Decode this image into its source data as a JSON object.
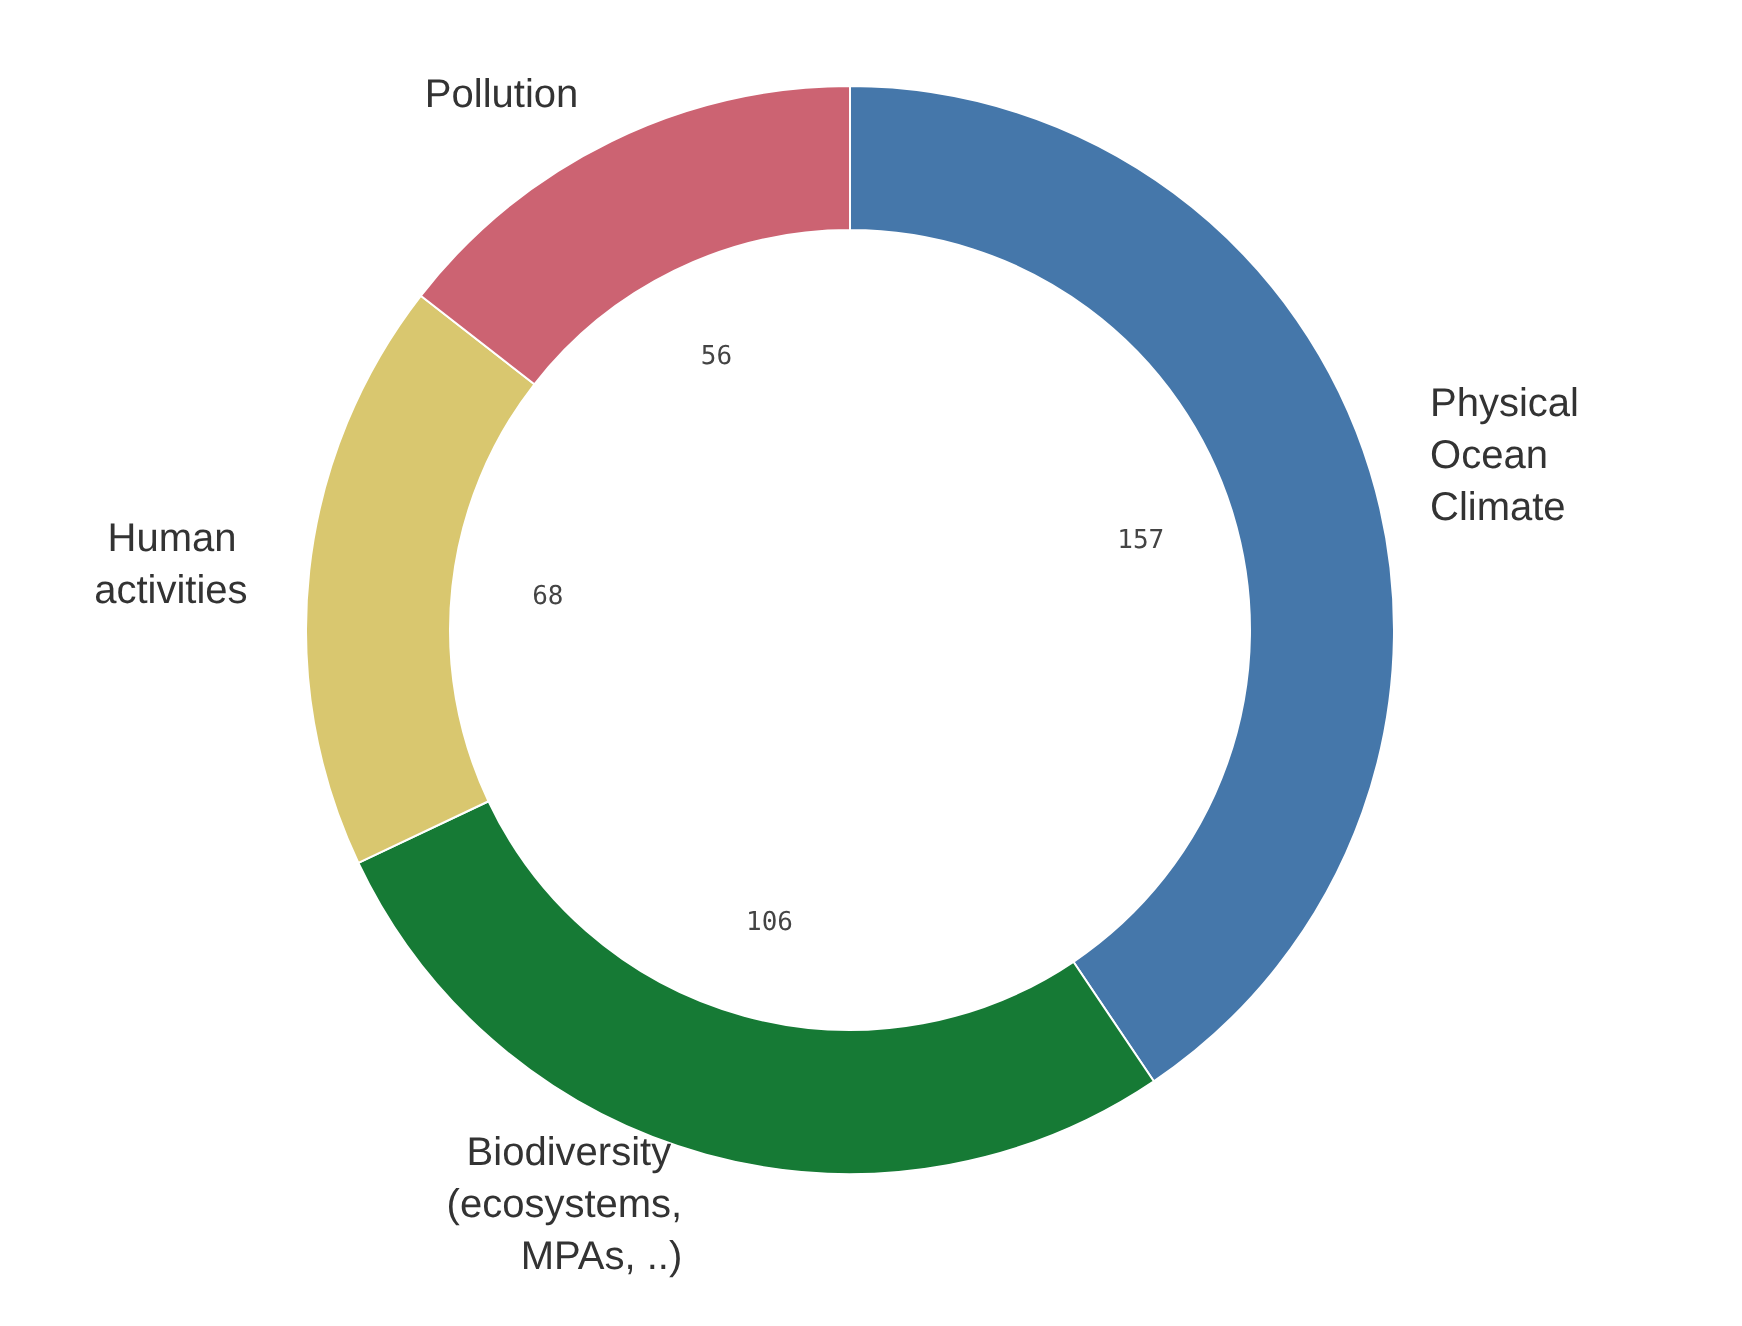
{
  "chart_data": {
    "type": "donut",
    "categories": [
      "Physical Ocean Climate",
      "Biodiversity (ecosystems, MPAs, ..)",
      "Human activities",
      "Pollution"
    ],
    "values": [
      157,
      106,
      68,
      56
    ],
    "colors": [
      "#4577aa",
      "#167a35",
      "#d9c76f",
      "#cc6372"
    ],
    "data_labels": true,
    "legend": false
  }
}
